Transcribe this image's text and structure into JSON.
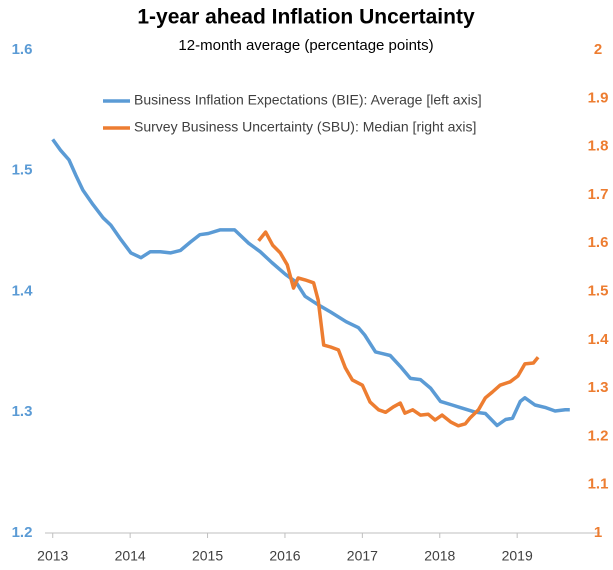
{
  "chart_data": {
    "type": "line",
    "title": "1-year ahead Inflation Uncertainty",
    "subtitle": "12-month average (percentage points)",
    "xlim": [
      2012.9,
      2020.07
    ],
    "xticks": [
      2013,
      2014,
      2015,
      2016,
      2017,
      2018,
      2019
    ],
    "ylim": [
      1.2,
      1.6
    ],
    "yticks": [
      1.2,
      1.3,
      1.4,
      1.5,
      1.6
    ],
    "y2lim": [
      1,
      2
    ],
    "y2ticks": [
      1,
      1.1,
      1.2,
      1.3,
      1.4,
      1.5,
      1.6,
      1.7,
      1.8,
      1.9,
      2
    ],
    "grid": false,
    "series": [
      {
        "name": "Business Inflation Expectations (BIE): Average [left axis]",
        "color": "#5b9bd5",
        "axis": "y",
        "x": [
          2013.0,
          2013.1,
          2013.21,
          2013.3,
          2013.39,
          2013.52,
          2013.65,
          2013.75,
          2013.88,
          2014.01,
          2014.14,
          2014.26,
          2014.39,
          2014.52,
          2014.65,
          2014.78,
          2014.9,
          2015.01,
          2015.16,
          2015.35,
          2015.53,
          2015.68,
          2015.83,
          2016.01,
          2016.14,
          2016.26,
          2016.43,
          2016.59,
          2016.79,
          2016.95,
          2017.03,
          2017.17,
          2017.36,
          2017.49,
          2017.62,
          2017.75,
          2017.88,
          2018.01,
          2018.16,
          2018.26,
          2018.46,
          2018.59,
          2018.74,
          2018.85,
          2018.94,
          2019.04,
          2019.1,
          2019.23,
          2019.36,
          2019.49,
          2019.62,
          2019.68
        ],
        "values": [
          1.526,
          1.517,
          1.509,
          1.496,
          1.484,
          1.472,
          1.461,
          1.455,
          1.443,
          1.432,
          1.428,
          1.433,
          1.433,
          1.432,
          1.434,
          1.441,
          1.447,
          1.448,
          1.451,
          1.451,
          1.44,
          1.433,
          1.424,
          1.414,
          1.408,
          1.396,
          1.389,
          1.383,
          1.375,
          1.37,
          1.364,
          1.35,
          1.347,
          1.338,
          1.328,
          1.327,
          1.32,
          1.309,
          1.306,
          1.304,
          1.3,
          1.299,
          1.289,
          1.294,
          1.295,
          1.309,
          1.312,
          1.306,
          1.304,
          1.301,
          1.302,
          1.302
        ]
      },
      {
        "name": "Survey Business Uncertainty (SBU): Median [right axis]",
        "color": "#ed7d31",
        "axis": "y2",
        "x": [
          2015.66,
          2015.75,
          2015.84,
          2015.94,
          2016.03,
          2016.11,
          2016.17,
          2016.26,
          2016.37,
          2016.43,
          2016.5,
          2016.59,
          2016.69,
          2016.78,
          2016.87,
          2017.0,
          2017.1,
          2017.21,
          2017.3,
          2017.4,
          2017.49,
          2017.55,
          2017.65,
          2017.75,
          2017.85,
          2017.94,
          2018.03,
          2018.14,
          2018.24,
          2018.33,
          2018.39,
          2018.5,
          2018.59,
          2018.68,
          2018.78,
          2018.91,
          2019.01,
          2019.1,
          2019.21,
          2019.27
        ],
        "values": [
          1.605,
          1.623,
          1.596,
          1.58,
          1.555,
          1.507,
          1.528,
          1.524,
          1.518,
          1.482,
          1.389,
          1.385,
          1.379,
          1.342,
          1.317,
          1.306,
          1.271,
          1.255,
          1.25,
          1.261,
          1.269,
          1.248,
          1.255,
          1.244,
          1.246,
          1.234,
          1.244,
          1.23,
          1.222,
          1.226,
          1.238,
          1.255,
          1.28,
          1.292,
          1.306,
          1.313,
          1.325,
          1.35,
          1.352,
          1.364
        ]
      }
    ]
  }
}
